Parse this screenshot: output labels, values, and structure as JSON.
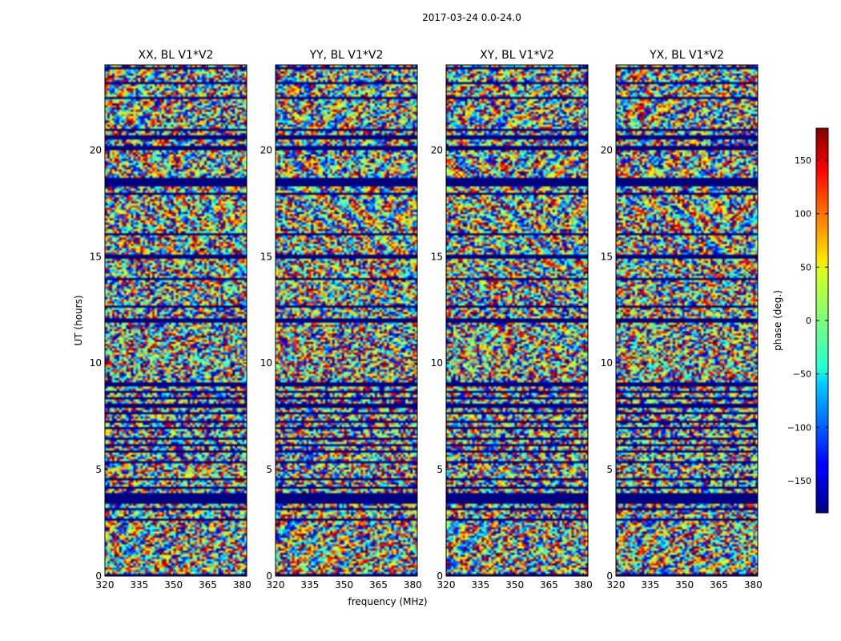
{
  "chart_data": {
    "type": "heatmap",
    "suptitle": "2017-03-24 0.0-24.0",
    "xlabel": "frequency (MHz)",
    "ylabel": "UT (hours)",
    "xlim": [
      320,
      382
    ],
    "ylim": [
      0,
      24
    ],
    "xticks": [
      320,
      335,
      350,
      365,
      380
    ],
    "yticks": [
      0,
      5,
      10,
      15,
      20
    ],
    "panels": [
      {
        "title": "XX, BL V1*V2"
      },
      {
        "title": "YY, BL V1*V2"
      },
      {
        "title": "XY, BL V1*V2"
      },
      {
        "title": "YX, BL V1*V2"
      }
    ],
    "flagged_time_bands": [
      [
        0.0,
        0.06
      ],
      [
        0.5,
        0.55
      ],
      [
        1.05,
        1.1
      ],
      [
        1.5,
        1.55
      ],
      [
        2.6,
        2.68
      ],
      [
        3.1,
        3.2
      ],
      [
        3.35,
        3.9
      ],
      [
        4.15,
        4.2
      ],
      [
        4.55,
        4.62
      ],
      [
        5.35,
        5.42
      ],
      [
        5.85,
        5.92
      ],
      [
        6.12,
        6.2
      ],
      [
        6.45,
        6.55
      ],
      [
        6.9,
        7.0
      ],
      [
        7.2,
        7.28
      ],
      [
        7.62,
        7.7
      ],
      [
        7.95,
        8.05
      ],
      [
        8.35,
        8.42
      ],
      [
        8.62,
        8.7
      ],
      [
        8.95,
        9.05
      ],
      [
        9.35,
        9.42
      ],
      [
        11.55,
        11.65
      ],
      [
        11.95,
        12.05
      ],
      [
        12.65,
        12.72
      ],
      [
        13.95,
        14.02
      ],
      [
        14.95,
        15.05
      ],
      [
        16.05,
        16.12
      ],
      [
        17.92,
        18.0
      ],
      [
        18.35,
        18.48
      ],
      [
        18.55,
        18.65
      ],
      [
        20.05,
        20.15
      ],
      [
        20.55,
        20.72
      ],
      [
        20.95,
        21.02
      ],
      [
        22.45,
        22.52
      ],
      [
        23.15,
        23.22
      ],
      [
        23.78,
        23.92
      ]
    ],
    "colorbar": {
      "label": "phase (deg.)",
      "min": -180,
      "max": 180,
      "ticks": [
        -150,
        -100,
        -50,
        0,
        50,
        100,
        150
      ],
      "tick_labels": [
        "−150",
        "−100",
        "−50",
        "0",
        "50",
        "100",
        "150"
      ],
      "colormap": "jet"
    }
  }
}
